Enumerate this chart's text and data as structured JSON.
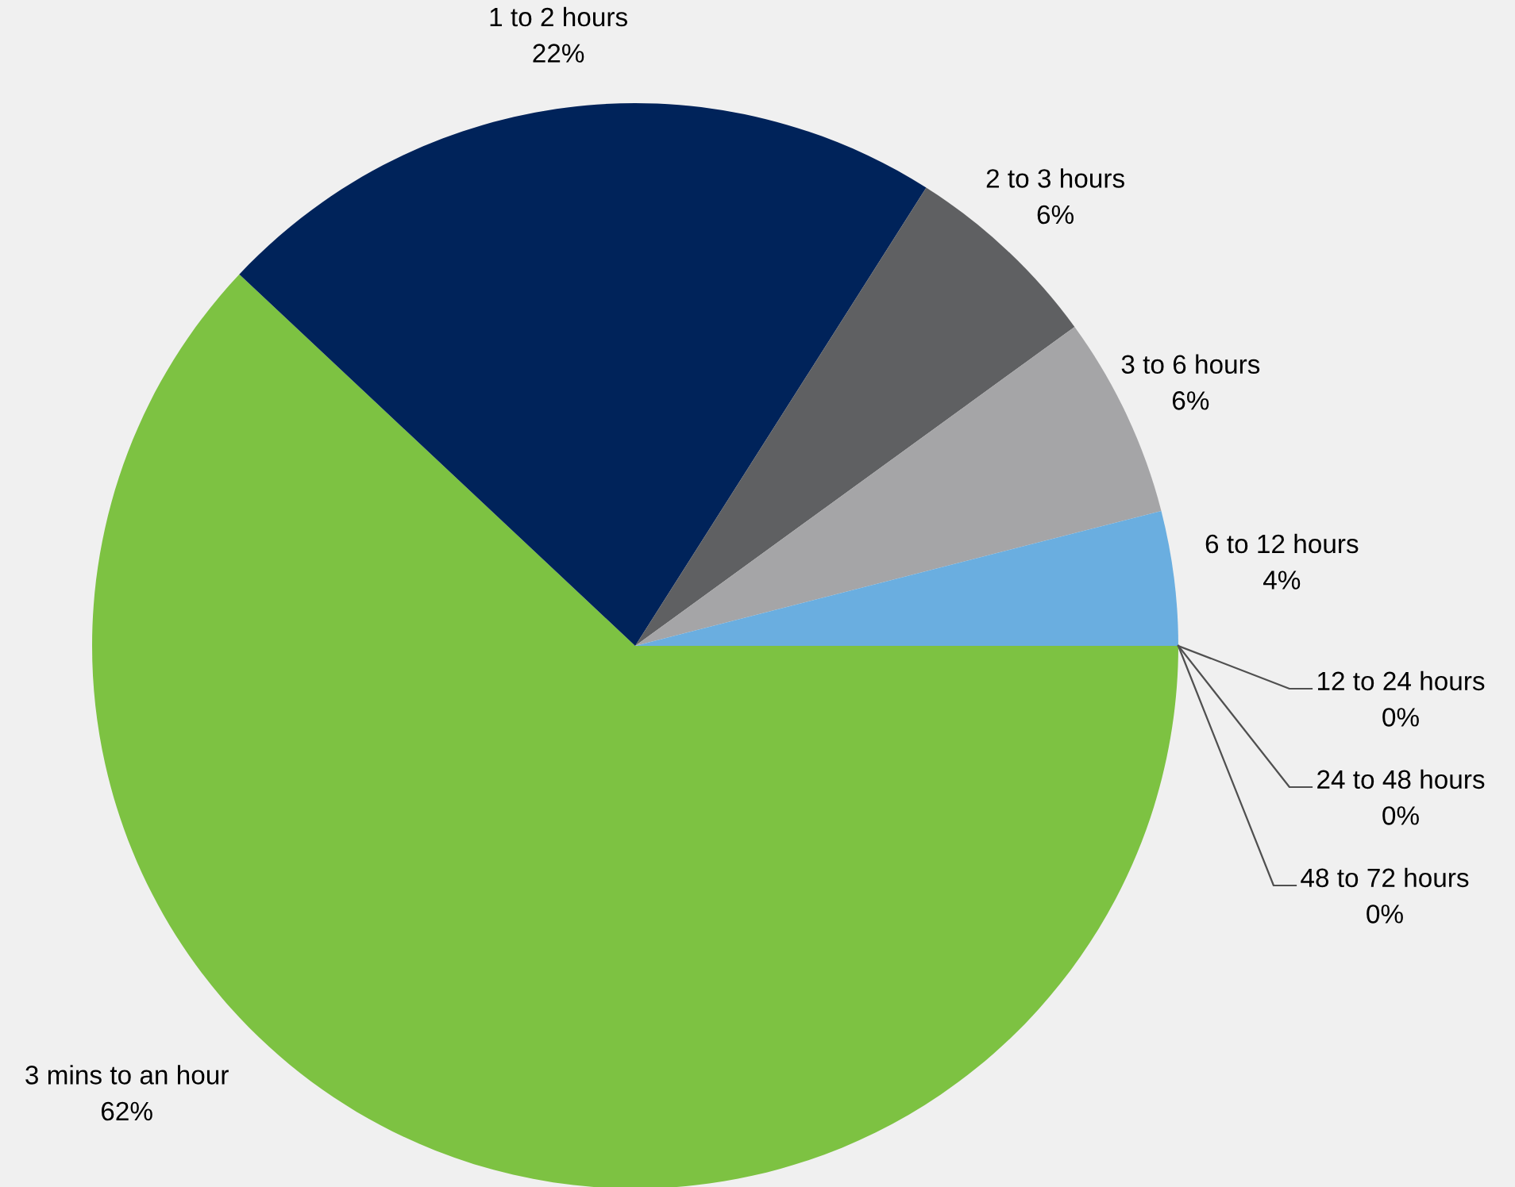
{
  "chart_data": {
    "type": "pie",
    "categories": [
      "3 mins to an hour",
      "1 to 2 hours",
      "2 to 3 hours",
      "3 to 6 hours",
      "6 to 12 hours",
      "12 to 24 hours",
      "24 to 48 hours",
      "48 to 72 hours"
    ],
    "values": [
      62,
      22,
      6,
      6,
      4,
      0,
      0,
      0
    ],
    "colors": [
      "#7dc242",
      "#00235a",
      "#5f6062",
      "#a5a5a7",
      "#6aaee0",
      "#6aaee0",
      "#6aaee0",
      "#6aaee0"
    ],
    "value_labels": [
      "62%",
      "22%",
      "6%",
      "6%",
      "4%",
      "0%",
      "0%",
      "0%"
    ]
  }
}
